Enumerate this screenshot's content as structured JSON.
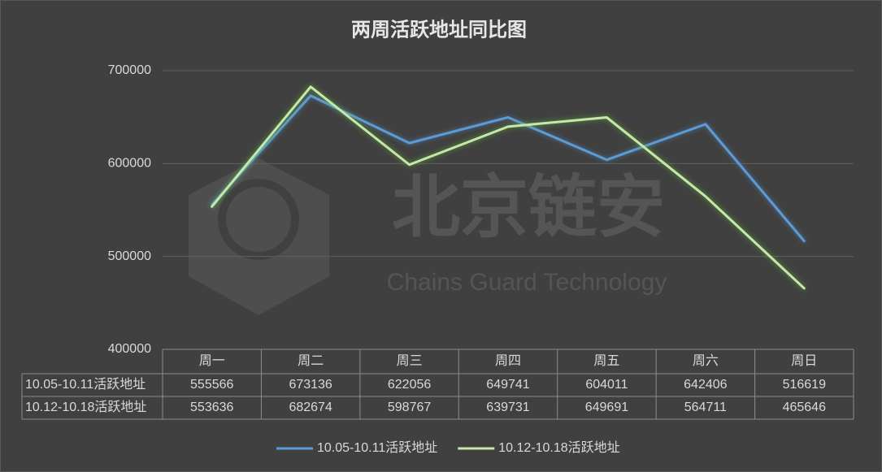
{
  "chart_data": {
    "type": "line",
    "title": "两周活跃地址同比图",
    "watermark_text": "北京链安",
    "watermark_subtext": "Chains Guard Technology",
    "categories": [
      "周一",
      "周二",
      "周三",
      "周四",
      "周五",
      "周六",
      "周日"
    ],
    "series": [
      {
        "name": "10.05-10.11活跃地址",
        "color": "#5b9bd5",
        "values": [
          555566,
          673136,
          622056,
          649741,
          604011,
          642406,
          516619
        ]
      },
      {
        "name": "10.12-10.18活跃地址",
        "color": "#c5e8a8",
        "values": [
          553636,
          682674,
          598767,
          639731,
          649691,
          564711,
          465646
        ]
      }
    ],
    "ylim": [
      400000,
      700000
    ],
    "yticks": [
      400000,
      500000,
      600000,
      700000
    ],
    "grid": true,
    "legend": "bottom",
    "data_table": true
  }
}
